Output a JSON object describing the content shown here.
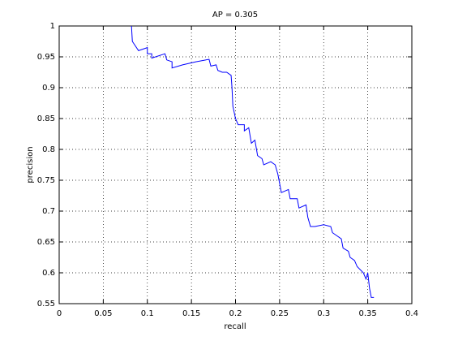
{
  "chart_data": {
    "type": "line",
    "title": "AP = 0.305",
    "x_label": "recall",
    "y_label": "precision",
    "x": [
      0.082,
      0.083,
      0.09,
      0.1,
      0.1,
      0.105,
      0.105,
      0.12,
      0.122,
      0.128,
      0.128,
      0.14,
      0.155,
      0.17,
      0.172,
      0.178,
      0.18,
      0.185,
      0.19,
      0.195,
      0.196,
      0.197,
      0.2,
      0.203,
      0.21,
      0.21,
      0.215,
      0.218,
      0.222,
      0.225,
      0.23,
      0.232,
      0.24,
      0.245,
      0.248,
      0.25,
      0.252,
      0.26,
      0.262,
      0.27,
      0.272,
      0.28,
      0.282,
      0.285,
      0.29,
      0.3,
      0.308,
      0.31,
      0.315,
      0.32,
      0.322,
      0.328,
      0.33,
      0.335,
      0.338,
      0.345,
      0.348,
      0.35,
      0.352,
      0.354,
      0.357
    ],
    "values": [
      1.0,
      0.975,
      0.96,
      0.965,
      0.955,
      0.955,
      0.948,
      0.955,
      0.945,
      0.942,
      0.932,
      0.937,
      0.942,
      0.946,
      0.935,
      0.937,
      0.928,
      0.925,
      0.925,
      0.92,
      0.9,
      0.87,
      0.85,
      0.84,
      0.84,
      0.83,
      0.835,
      0.81,
      0.815,
      0.79,
      0.785,
      0.775,
      0.78,
      0.775,
      0.76,
      0.745,
      0.73,
      0.735,
      0.72,
      0.72,
      0.705,
      0.71,
      0.69,
      0.675,
      0.675,
      0.678,
      0.675,
      0.665,
      0.66,
      0.655,
      0.64,
      0.635,
      0.625,
      0.62,
      0.61,
      0.6,
      0.59,
      0.6,
      0.575,
      0.56,
      0.56
    ],
    "color": "#0000ff",
    "xlim": [
      0,
      0.4
    ],
    "xticks": [
      0,
      0.05,
      0.1,
      0.15,
      0.2,
      0.25,
      0.3,
      0.35,
      0.4
    ],
    "ylim": [
      0.55,
      1
    ],
    "yticks": [
      0.55,
      0.6,
      0.65,
      0.7,
      0.75,
      0.8,
      0.85,
      0.9,
      0.95,
      1
    ],
    "grid": true
  }
}
